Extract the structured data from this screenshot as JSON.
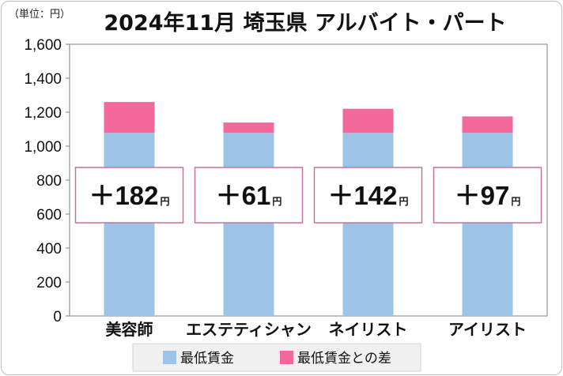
{
  "chart_data": {
    "type": "bar",
    "stacked": true,
    "title": "2024年11月 埼玉県 アルバイト・パート",
    "unit_label": "（単位：円）",
    "categories": [
      "美容師",
      "エステティシャン",
      "ネイリスト",
      "アイリスト"
    ],
    "series": [
      {
        "name": "最低賃金",
        "values": [
          1078,
          1078,
          1078,
          1078
        ],
        "color": "#9dc3e6"
      },
      {
        "name": "最低賃金との差",
        "values": [
          182,
          61,
          142,
          97
        ],
        "color": "#f2699b"
      }
    ],
    "difference_labels": [
      {
        "sign": "＋",
        "number": "182",
        "unit": "円"
      },
      {
        "sign": "＋",
        "number": "61",
        "unit": "円"
      },
      {
        "sign": "＋",
        "number": "142",
        "unit": "円"
      },
      {
        "sign": "＋",
        "number": "97",
        "unit": "円"
      }
    ],
    "yticks": [
      "0",
      "200",
      "400",
      "600",
      "800",
      "1,000",
      "1,200",
      "1,400",
      "1,600"
    ],
    "ylim": [
      0,
      1600
    ],
    "grid": false,
    "legend_position": "bottom",
    "label_box_color": "#c8719c"
  }
}
